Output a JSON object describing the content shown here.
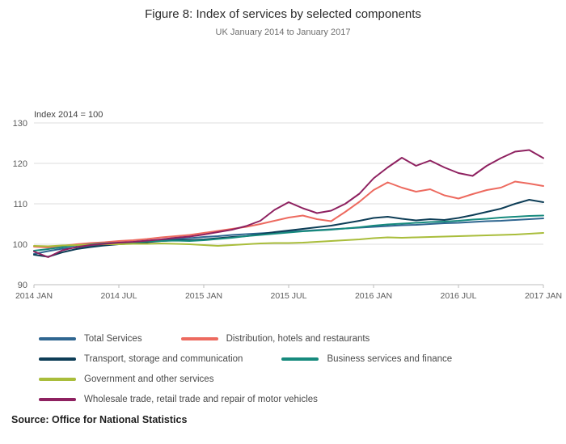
{
  "figure": {
    "title": "Figure 8: Index of services by selected components",
    "subtitle": "UK January 2014 to January 2017",
    "source": "Source: Office for National Statistics"
  },
  "chart_data": {
    "type": "line",
    "title": "Figure 8: Index of services by selected components",
    "subtitle": "UK January 2014 to January 2017",
    "unit_label": "Index 2014 = 100",
    "grid": "horizontal",
    "legend_position": "bottom",
    "ylim": [
      90,
      130
    ],
    "y_ticks": [
      90,
      100,
      110,
      120,
      130
    ],
    "x_tick_labels": [
      "2014 JAN",
      "2014 JUL",
      "2015 JAN",
      "2015 JUL",
      "2016 JAN",
      "2016 JUL",
      "2017 JAN"
    ],
    "x_monthly": [
      "2014-01",
      "2014-02",
      "2014-03",
      "2014-04",
      "2014-05",
      "2014-06",
      "2014-07",
      "2014-08",
      "2014-09",
      "2014-10",
      "2014-11",
      "2014-12",
      "2015-01",
      "2015-02",
      "2015-03",
      "2015-04",
      "2015-05",
      "2015-06",
      "2015-07",
      "2015-08",
      "2015-09",
      "2015-10",
      "2015-11",
      "2015-12",
      "2016-01",
      "2016-02",
      "2016-03",
      "2016-04",
      "2016-05",
      "2016-06",
      "2016-07",
      "2016-08",
      "2016-09",
      "2016-10",
      "2016-11",
      "2016-12",
      "2017-01"
    ],
    "series": [
      {
        "name": "Total Services",
        "color": "#2f6690",
        "values": [
          97.6,
          98.3,
          98.9,
          99.2,
          99.6,
          99.9,
          100.2,
          100.4,
          100.7,
          101.0,
          101.3,
          101.5,
          101.8,
          102.0,
          102.3,
          102.5,
          102.7,
          102.9,
          103.1,
          103.3,
          103.5,
          103.7,
          103.9,
          104.1,
          104.3,
          104.5,
          104.7,
          104.8,
          105.0,
          105.2,
          105.3,
          105.5,
          105.7,
          105.8,
          106.0,
          106.2,
          106.4
        ]
      },
      {
        "name": "Distribution, hotels and restaurants",
        "color": "#ed6a5f",
        "values": [
          99.4,
          99.2,
          99.6,
          100.0,
          100.3,
          100.5,
          100.8,
          101.0,
          101.3,
          101.7,
          102.0,
          102.3,
          102.8,
          103.3,
          103.8,
          104.3,
          105.0,
          105.8,
          106.6,
          107.1,
          106.2,
          105.7,
          108.0,
          110.5,
          113.4,
          115.3,
          114.0,
          113.0,
          113.6,
          112.1,
          111.3,
          112.4,
          113.4,
          114.0,
          115.5,
          115.0,
          114.4
        ]
      },
      {
        "name": "Transport, storage and communication",
        "color": "#0d3d56",
        "values": [
          97.4,
          96.9,
          98.0,
          98.8,
          99.3,
          99.7,
          100.0,
          100.2,
          100.5,
          100.8,
          101.0,
          101.0,
          101.2,
          101.5,
          101.8,
          102.0,
          102.5,
          103.0,
          103.4,
          103.8,
          104.2,
          104.6,
          105.2,
          105.8,
          106.5,
          106.8,
          106.3,
          105.9,
          106.2,
          106.0,
          106.5,
          107.2,
          108.0,
          108.8,
          110.0,
          111.0,
          110.4
        ]
      },
      {
        "name": "Business services and finance",
        "color": "#168a7d",
        "values": [
          98.4,
          98.8,
          99.3,
          99.7,
          100.0,
          100.2,
          100.4,
          100.5,
          100.7,
          100.8,
          100.9,
          100.8,
          101.0,
          101.3,
          101.6,
          102.0,
          102.3,
          102.6,
          102.9,
          103.2,
          103.4,
          103.6,
          103.9,
          104.2,
          104.6,
          104.9,
          105.1,
          105.3,
          105.5,
          105.6,
          105.8,
          106.1,
          106.3,
          106.6,
          106.8,
          107.0,
          107.1
        ]
      },
      {
        "name": "Government and other services",
        "color": "#a9bd3b",
        "values": [
          99.6,
          99.5,
          99.7,
          99.8,
          99.9,
          100.0,
          100.0,
          100.1,
          100.1,
          100.2,
          100.1,
          100.0,
          99.8,
          99.6,
          99.8,
          100.0,
          100.2,
          100.3,
          100.3,
          100.4,
          100.6,
          100.8,
          101.0,
          101.2,
          101.5,
          101.7,
          101.6,
          101.7,
          101.8,
          101.9,
          102.0,
          102.1,
          102.2,
          102.3,
          102.4,
          102.6,
          102.8
        ]
      },
      {
        "name": "Wholesale trade, retail trade and repair of motor vehicles",
        "color": "#8e2160",
        "values": [
          98.2,
          96.8,
          98.5,
          99.3,
          99.8,
          100.1,
          100.4,
          100.6,
          100.9,
          101.2,
          101.6,
          101.9,
          102.4,
          103.0,
          103.6,
          104.5,
          105.8,
          108.5,
          110.4,
          108.9,
          107.7,
          108.3,
          110.0,
          112.5,
          116.3,
          119.0,
          121.4,
          119.4,
          120.7,
          119.0,
          117.6,
          116.9,
          119.4,
          121.3,
          122.9,
          123.3,
          121.3
        ]
      }
    ]
  }
}
